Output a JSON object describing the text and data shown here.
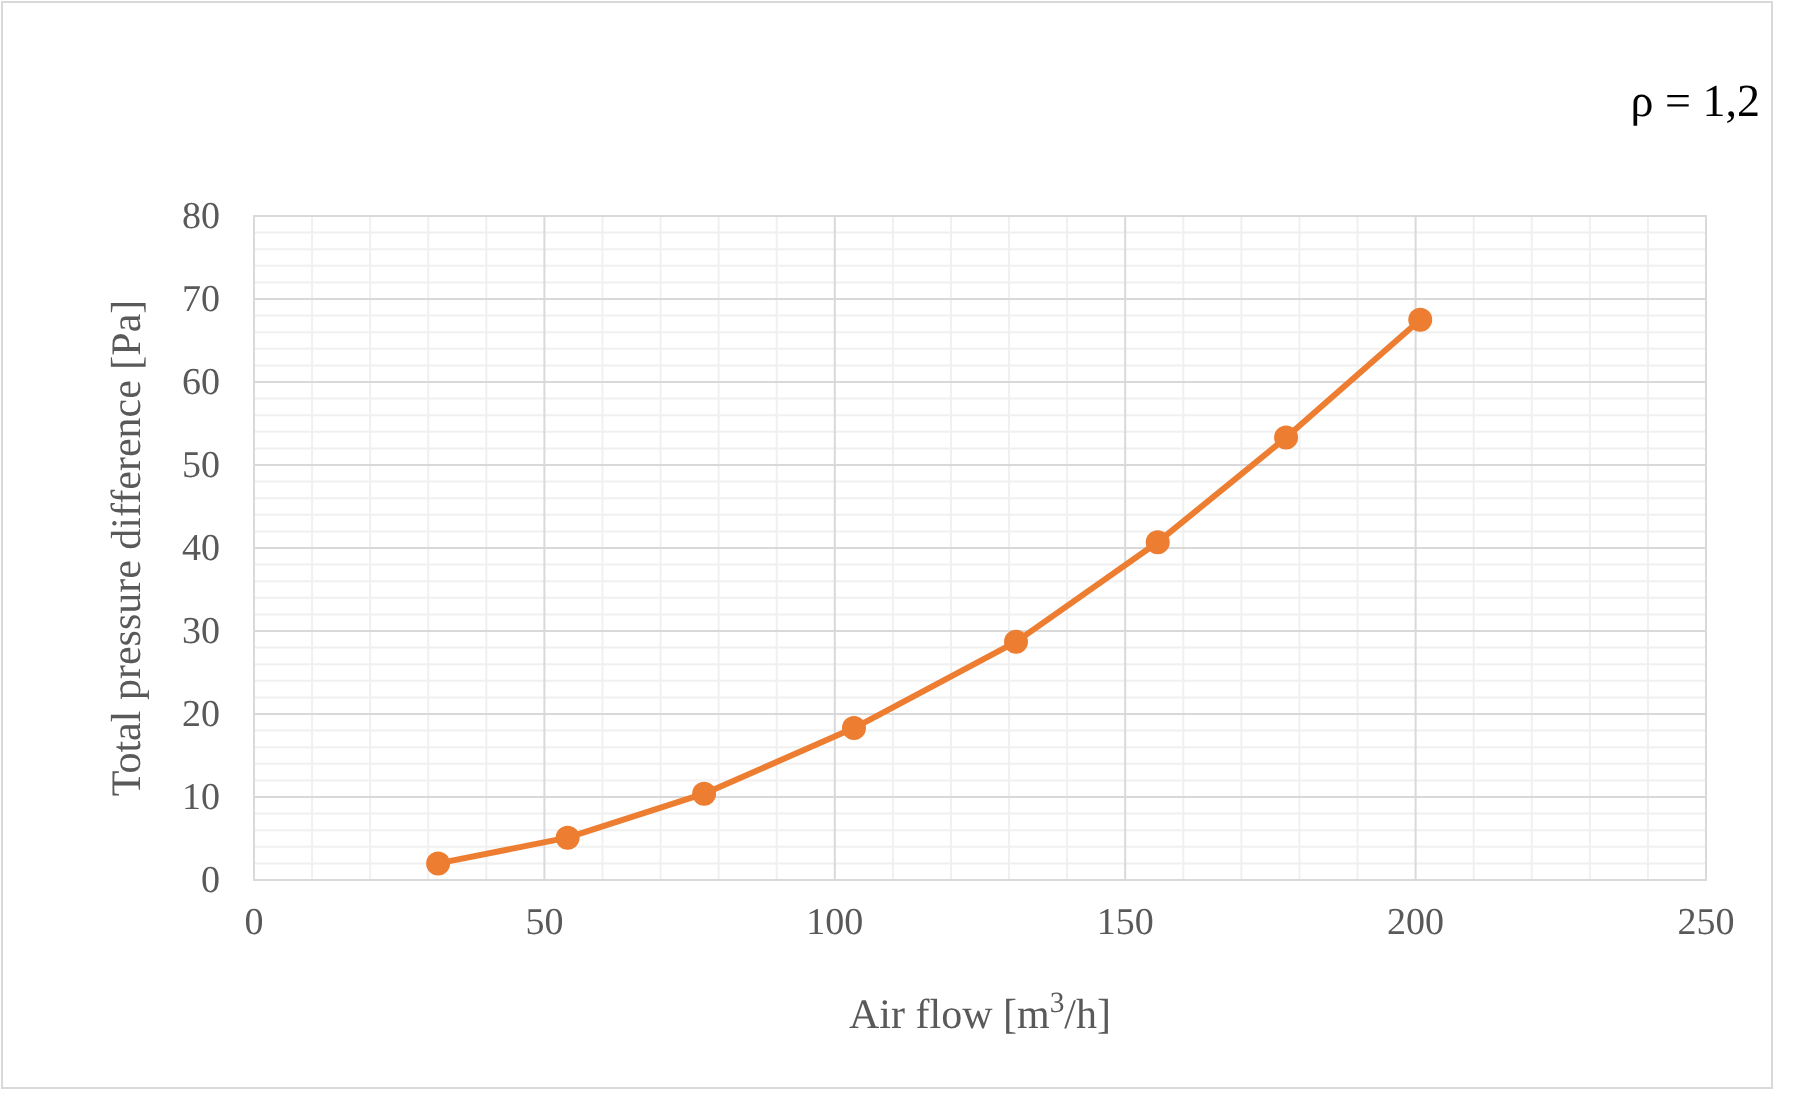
{
  "chart_data": {
    "type": "line",
    "xlabel": "Air flow [m$^{3}$/h]",
    "ylabel": "Total pressure difference [Pa]",
    "annotations": [
      "ρ = 1,2"
    ],
    "x": [
      31.7,
      54,
      77.5,
      103.3,
      131.2,
      155.6,
      177.7,
      200.8
    ],
    "series": [
      {
        "color": "#ed7d31",
        "values": [
          2,
          5.1,
          10.4,
          18.3,
          28.7,
          40.7,
          53.3,
          67.5
        ]
      }
    ],
    "xlim": [
      0,
      250
    ],
    "xticks": [
      0,
      50,
      100,
      150,
      200,
      250
    ],
    "ylim": [
      0,
      80
    ],
    "yticks": [
      0,
      10,
      20,
      30,
      40,
      50,
      60,
      70,
      80
    ],
    "grid": true,
    "marker": "circle",
    "line_style": "solid"
  }
}
